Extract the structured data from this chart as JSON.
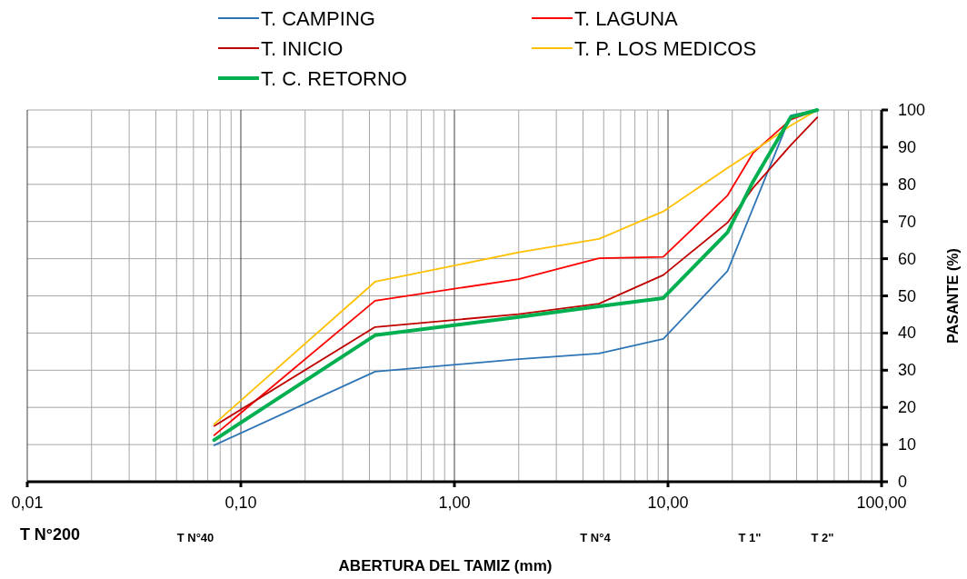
{
  "chart_data": {
    "type": "line",
    "xlabel": "ABERTURA DEL TAMIZ (mm)",
    "ylabel": "PASANTE (%)",
    "log": "x",
    "xlim": [
      0.01,
      100
    ],
    "ylim": [
      0,
      100
    ],
    "xticks": [
      {
        "value": 0.01,
        "label": "0,01"
      },
      {
        "value": 0.02,
        "label": null
      },
      {
        "value": 0.03,
        "label": null
      },
      {
        "value": 0.04,
        "label": null
      },
      {
        "value": 0.05,
        "label": null
      },
      {
        "value": 0.06,
        "label": null
      },
      {
        "value": 0.07,
        "label": null
      },
      {
        "value": 0.08,
        "label": null
      },
      {
        "value": 0.09,
        "label": null
      },
      {
        "value": 0.1,
        "label": "0,10"
      },
      {
        "value": 0.2,
        "label": null
      },
      {
        "value": 0.3,
        "label": null
      },
      {
        "value": 0.4,
        "label": null
      },
      {
        "value": 0.5,
        "label": null
      },
      {
        "value": 0.6,
        "label": null
      },
      {
        "value": 0.7,
        "label": null
      },
      {
        "value": 0.8,
        "label": null
      },
      {
        "value": 0.9,
        "label": null
      },
      {
        "value": 1,
        "label": "1,00"
      },
      {
        "value": 2,
        "label": null
      },
      {
        "value": 3,
        "label": null
      },
      {
        "value": 4,
        "label": null
      },
      {
        "value": 5,
        "label": null
      },
      {
        "value": 6,
        "label": null
      },
      {
        "value": 7,
        "label": null
      },
      {
        "value": 8,
        "label": null
      },
      {
        "value": 9,
        "label": null
      },
      {
        "value": 10,
        "label": "10,00"
      },
      {
        "value": 20,
        "label": null
      },
      {
        "value": 30,
        "label": null
      },
      {
        "value": 40,
        "label": null
      },
      {
        "value": 50,
        "label": null
      },
      {
        "value": 60,
        "label": null
      },
      {
        "value": 70,
        "label": null
      },
      {
        "value": 80,
        "label": null
      },
      {
        "value": 90,
        "label": null
      },
      {
        "value": 100,
        "label": "100,00"
      }
    ],
    "yticks": [
      0,
      10,
      20,
      30,
      40,
      50,
      60,
      70,
      80,
      90,
      100
    ],
    "grid": true,
    "legend": "top",
    "marker": "none",
    "line_style": "solid",
    "annotations": [
      "T N°200",
      "T N°40",
      "T N°4",
      "T 1\"",
      "T 2\""
    ],
    "series": [
      {
        "name": "T. CAMPING",
        "color": "#2e75b6",
        "x": [
          0.075,
          0.425,
          2,
          4.75,
          9.5,
          19,
          37.5,
          50
        ],
        "values": [
          9.8,
          29.6,
          33,
          34.5,
          38.4,
          56.7,
          98.5,
          100
        ]
      },
      {
        "name": "T. LAGUNA",
        "color": "#ff0000",
        "x": [
          0.075,
          0.425,
          2,
          4.75,
          9.5,
          19,
          25,
          37.5,
          50
        ],
        "values": [
          12.5,
          48.7,
          54.5,
          60.1,
          60.5,
          77,
          88.4,
          97.4,
          100
        ]
      },
      {
        "name": "T. INICIO",
        "color": "#c00000",
        "x": [
          0.075,
          0.425,
          2,
          4.75,
          9.5,
          19,
          25,
          37.5,
          50
        ],
        "values": [
          15,
          41.6,
          45.1,
          47.9,
          55.6,
          69.7,
          79,
          90.5,
          98
        ]
      },
      {
        "name": "T. P. LOS MEDICOS",
        "color": "#ffc000",
        "x": [
          0.075,
          0.425,
          2,
          4.75,
          9.5,
          19,
          25,
          37.5,
          50
        ],
        "values": [
          15.5,
          53.8,
          61.7,
          65.3,
          72.7,
          84.4,
          88.9,
          95.8,
          100
        ]
      },
      {
        "name": "T. C. RETORNO",
        "color": "#00b050",
        "x": [
          0.075,
          0.425,
          2,
          4.75,
          9.5,
          19,
          25,
          37.5,
          50
        ],
        "values": [
          11.2,
          39.4,
          44.3,
          47.2,
          49.4,
          67.1,
          80.7,
          98,
          100
        ]
      }
    ]
  }
}
